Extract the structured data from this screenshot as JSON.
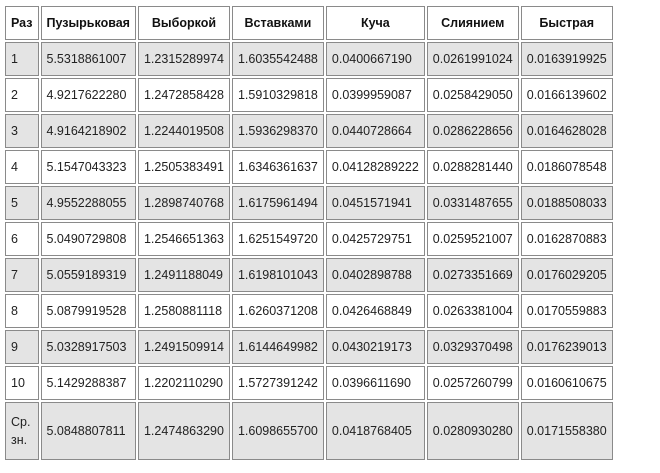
{
  "table": {
    "headers": [
      "Раз",
      "Пузырьковая",
      "Выборкой",
      "Вставками",
      "Куча",
      "Слиянием",
      "Быстрая"
    ],
    "rows": [
      {
        "run": "1",
        "values": [
          "5.5318861007",
          "1.2315289974",
          "1.6035542488",
          "0.0400667190",
          "0.0261991024",
          "0.0163919925"
        ]
      },
      {
        "run": "2",
        "values": [
          "4.9217622280",
          "1.2472858428",
          "1.5910329818",
          "0.0399959087",
          "0.0258429050",
          "0.0166139602"
        ]
      },
      {
        "run": "3",
        "values": [
          "4.9164218902",
          "1.2244019508",
          "1.5936298370",
          "0.0440728664",
          "0.0286228656",
          "0.0164628028"
        ]
      },
      {
        "run": "4",
        "values": [
          "5.1547043323",
          "1.2505383491",
          "1.6346361637",
          "0.04128289222",
          "0.0288281440",
          "0.0186078548"
        ]
      },
      {
        "run": "5",
        "values": [
          "4.9552288055",
          "1.2898740768",
          "1.6175961494",
          "0.0451571941",
          "0.0331487655",
          "0.0188508033"
        ]
      },
      {
        "run": "6",
        "values": [
          "5.0490729808",
          "1.2546651363",
          "1.6251549720",
          "0.0425729751",
          "0.0259521007",
          "0.0162870883"
        ]
      },
      {
        "run": "7",
        "values": [
          "5.0559189319",
          "1.2491188049",
          "1.6198101043",
          "0.0402898788",
          "0.0273351669",
          "0.0176029205"
        ]
      },
      {
        "run": "8",
        "values": [
          "5.0879919528",
          "1.2580881118",
          "1.6260371208",
          "0.0426468849",
          "0.0263381004",
          "0.0170559883"
        ]
      },
      {
        "run": "9",
        "values": [
          "5.0328917503",
          "1.2491509914",
          "1.6144649982",
          "0.0430219173",
          "0.0329370498",
          "0.0176239013"
        ]
      },
      {
        "run": "10",
        "values": [
          "5.1429288387",
          "1.2202110290",
          "1.5727391242",
          "0.0396611690",
          "0.0257260799",
          "0.0160610675"
        ]
      },
      {
        "run": "Ср. зн.",
        "values": [
          "5.0848807811",
          "1.2474863290",
          "1.6098655700",
          "0.0418768405",
          "0.0280930280",
          "0.0171558380"
        ]
      }
    ]
  }
}
